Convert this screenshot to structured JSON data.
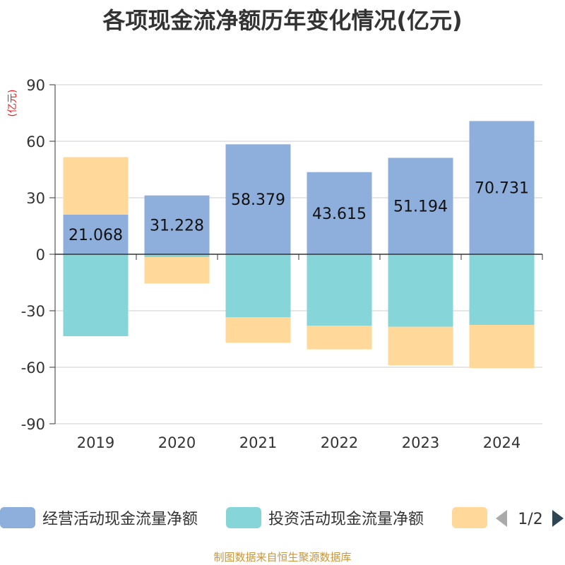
{
  "chart_data": {
    "type": "bar",
    "stacked": true,
    "title": "各项现金流净额历年变化情况(亿元)",
    "ylabel": "(亿元)",
    "xlabel": "",
    "categories": [
      "2019",
      "2020",
      "2021",
      "2022",
      "2023",
      "2024"
    ],
    "ylim": [
      -90,
      90
    ],
    "yticks": [
      90,
      60,
      30,
      0,
      -30,
      -60,
      -90
    ],
    "grid": true,
    "legend_position": "bottom",
    "series": [
      {
        "name": "经营活动现金流量净额",
        "color": "#8eaedb",
        "values": [
          21.068,
          31.228,
          58.379,
          43.615,
          51.194,
          70.731
        ],
        "labels": [
          "21.068",
          "31.228",
          "58.379",
          "43.615",
          "51.194",
          "70.731"
        ]
      },
      {
        "name": "投资活动现金流量净额",
        "color": "#86d5d8",
        "values": [
          -43.5,
          -1.5,
          -33.5,
          -38.0,
          -38.5,
          -37.5
        ]
      },
      {
        "name": "",
        "color": "#ffd89a",
        "values": [
          30.5,
          -14.0,
          -13.5,
          -12.5,
          -20.5,
          -23.0
        ]
      }
    ],
    "legend_page": "1/2"
  },
  "source": "制图数据来自恒生聚源数据库"
}
